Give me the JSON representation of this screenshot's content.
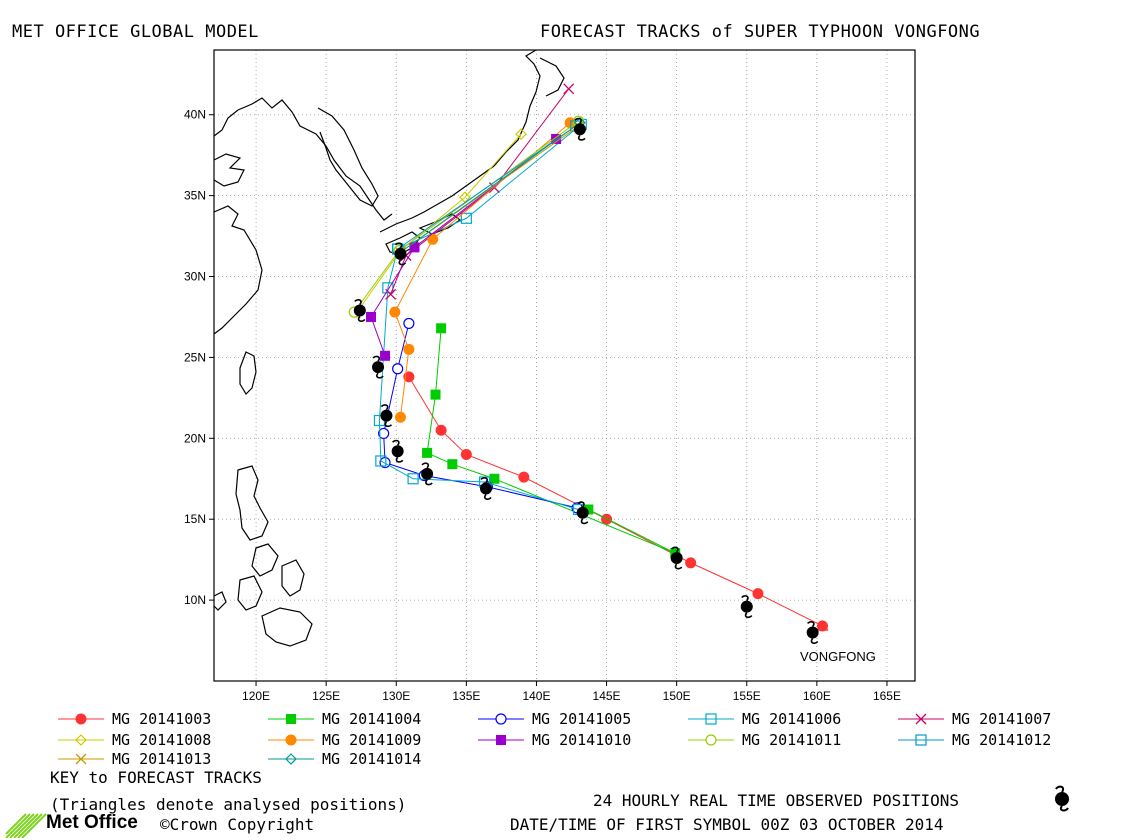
{
  "header": {
    "left": "MET OFFICE GLOBAL MODEL",
    "right": "FORECAST TRACKS of SUPER TYPHOON VONGFONG"
  },
  "map": {
    "lon_range": [
      117,
      167
    ],
    "lat_range": [
      5,
      44
    ],
    "x_ticks": [
      "120E",
      "125E",
      "130E",
      "135E",
      "140E",
      "145E",
      "150E",
      "155E",
      "160E",
      "165E"
    ],
    "y_ticks": [
      "10N",
      "15N",
      "20N",
      "25N",
      "30N",
      "35N",
      "40N"
    ],
    "storm_label": "VONGFONG",
    "observed_positions": [
      [
        159.7,
        8.0
      ],
      [
        155.0,
        9.6
      ],
      [
        150.0,
        12.6
      ],
      [
        143.3,
        15.4
      ],
      [
        136.4,
        16.9
      ],
      [
        132.2,
        17.8
      ],
      [
        130.1,
        19.2
      ],
      [
        129.3,
        21.4
      ],
      [
        128.7,
        24.4
      ],
      [
        127.4,
        27.9
      ],
      [
        130.3,
        31.4
      ],
      [
        143.1,
        39.1
      ]
    ]
  },
  "chart_data": {
    "type": "map-tracks",
    "title": "FORECAST TRACKS of SUPER TYPHOON VONGFONG",
    "series": [
      {
        "name": "MG 20141003",
        "color": "#ff3333",
        "marker": "filled-circle",
        "points": [
          [
            160.4,
            8.4
          ],
          [
            155.8,
            10.4
          ],
          [
            151.0,
            12.3
          ],
          [
            145.0,
            15.0
          ],
          [
            139.1,
            17.6
          ],
          [
            135.0,
            19.0
          ],
          [
            133.2,
            20.5
          ],
          [
            130.9,
            23.8
          ]
        ]
      },
      {
        "name": "MG 20141004",
        "color": "#00cc00",
        "marker": "filled-square",
        "points": [
          [
            143.7,
            15.6
          ],
          [
            149.9,
            12.9
          ],
          [
            137.0,
            17.5
          ],
          [
            134.0,
            18.4
          ],
          [
            132.2,
            19.1
          ],
          [
            132.8,
            22.7
          ],
          [
            133.2,
            26.8
          ]
        ]
      },
      {
        "name": "MG 20141005",
        "color": "#0000ff",
        "marker": "open-circle",
        "points": [
          [
            142.9,
            15.7
          ],
          [
            136.5,
            17.0
          ],
          [
            132.0,
            17.7
          ],
          [
            129.2,
            18.5
          ],
          [
            129.1,
            20.3
          ],
          [
            130.1,
            24.3
          ],
          [
            130.9,
            27.1
          ]
        ]
      },
      {
        "name": "MG 20141006",
        "color": "#00aacc",
        "marker": "open-square",
        "points": [
          [
            143.0,
            15.6
          ],
          [
            136.3,
            17.3
          ],
          [
            131.2,
            17.5
          ],
          [
            128.9,
            18.6
          ],
          [
            128.8,
            21.1
          ],
          [
            129.4,
            29.3
          ],
          [
            130.1,
            31.7
          ],
          [
            135.0,
            33.6
          ],
          [
            143.2,
            39.4
          ]
        ]
      },
      {
        "name": "MG 20141007",
        "color": "#cc0066",
        "marker": "x",
        "points": [
          [
            129.6,
            28.9
          ],
          [
            130.7,
            31.3
          ],
          [
            137.0,
            35.5
          ],
          [
            142.3,
            41.6
          ]
        ]
      },
      {
        "name": "MG 20141008",
        "color": "#cccc00",
        "marker": "open-diamond",
        "points": [
          [
            127.2,
            27.8
          ],
          [
            130.3,
            31.6
          ],
          [
            134.9,
            34.9
          ],
          [
            138.9,
            38.8
          ]
        ]
      },
      {
        "name": "MG 20141009",
        "color": "#ff8800",
        "marker": "filled-circle",
        "points": [
          [
            130.3,
            21.3
          ],
          [
            130.9,
            25.5
          ],
          [
            129.9,
            27.8
          ],
          [
            132.6,
            32.3
          ],
          [
            142.4,
            39.5
          ]
        ]
      },
      {
        "name": "MG 20141010",
        "color": "#9900cc",
        "marker": "filled-square",
        "points": [
          [
            129.2,
            25.1
          ],
          [
            128.2,
            27.5
          ],
          [
            131.3,
            31.8
          ],
          [
            141.4,
            38.5
          ]
        ]
      },
      {
        "name": "MG 20141011",
        "color": "#99cc00",
        "marker": "open-circle",
        "points": [
          [
            127.0,
            27.8
          ],
          [
            130.2,
            31.6
          ],
          [
            143.0,
            39.6
          ]
        ]
      },
      {
        "name": "MG 20141012",
        "color": "#0099cc",
        "marker": "open-square",
        "points": [
          [
            130.1,
            31.7
          ],
          [
            142.8,
            39.3
          ]
        ]
      },
      {
        "name": "MG 20141013",
        "color": "#cc9900",
        "marker": "x",
        "points": [
          [
            130.3,
            31.5
          ],
          [
            143.0,
            39.3
          ]
        ]
      },
      {
        "name": "MG 20141014",
        "color": "#009999",
        "marker": "open-diamond",
        "points": [
          [
            130.3,
            31.5
          ],
          [
            143.1,
            39.5
          ]
        ]
      }
    ]
  },
  "legend": {
    "entries": [
      {
        "name": "MG 20141003",
        "color": "#ff3333",
        "marker": "filled-circle"
      },
      {
        "name": "MG 20141004",
        "color": "#00cc00",
        "marker": "filled-square"
      },
      {
        "name": "MG 20141005",
        "color": "#0000ff",
        "marker": "open-circle"
      },
      {
        "name": "MG 20141006",
        "color": "#00aacc",
        "marker": "open-square"
      },
      {
        "name": "MG 20141007",
        "color": "#cc0066",
        "marker": "x"
      },
      {
        "name": "MG 20141008",
        "color": "#cccc00",
        "marker": "open-diamond"
      },
      {
        "name": "MG 20141009",
        "color": "#ff8800",
        "marker": "filled-circle"
      },
      {
        "name": "MG 20141010",
        "color": "#9900cc",
        "marker": "filled-square"
      },
      {
        "name": "MG 20141011",
        "color": "#99cc00",
        "marker": "open-circle"
      },
      {
        "name": "MG 20141012",
        "color": "#0099cc",
        "marker": "open-square"
      },
      {
        "name": "MG 20141013",
        "color": "#cc9900",
        "marker": "x"
      },
      {
        "name": "MG 20141014",
        "color": "#009999",
        "marker": "open-diamond"
      }
    ]
  },
  "footer": {
    "key_title": "KEY to FORECAST TRACKS",
    "triangles_note": "(Triangles denote analysed positions)",
    "observed_note": "24 HOURLY REAL TIME OBSERVED POSITIONS",
    "date_note": "DATE/TIME OF FIRST SYMBOL 00Z 03 OCTOBER 2014",
    "logo_text": "Met Office",
    "copyright": "©Crown Copyright"
  }
}
